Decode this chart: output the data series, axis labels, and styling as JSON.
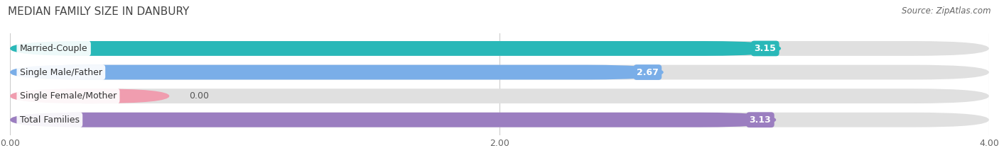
{
  "title": "MEDIAN FAMILY SIZE IN DANBURY",
  "source": "Source: ZipAtlas.com",
  "categories": [
    "Married-Couple",
    "Single Male/Father",
    "Single Female/Mother",
    "Total Families"
  ],
  "values": [
    3.15,
    2.67,
    0.0,
    3.13
  ],
  "bar_colors": [
    "#29b8b8",
    "#7aaee8",
    "#f09daf",
    "#9b7ec0"
  ],
  "bar_bg_color": "#e0e0e0",
  "xlim": [
    0,
    4.0
  ],
  "xticks": [
    0.0,
    2.0,
    4.0
  ],
  "xtick_labels": [
    "0.00",
    "2.00",
    "4.00"
  ],
  "title_fontsize": 11,
  "source_fontsize": 8.5,
  "label_fontsize": 9,
  "value_fontsize": 9,
  "bar_height": 0.62,
  "background_color": "#ffffff"
}
